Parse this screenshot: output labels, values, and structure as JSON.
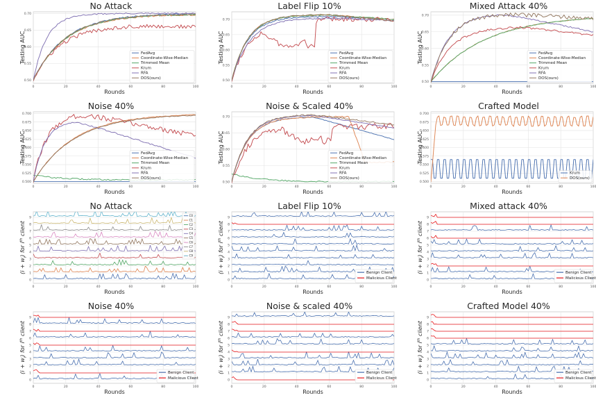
{
  "colors": {
    "FedAvg": "#4c72b0",
    "Coordinate-Wise-Median": "#dd8452",
    "Trimmed Mean": "#55a868",
    "Krum": "#c44e52",
    "RFA": "#8172b3",
    "DOS(ours)": "#937860",
    "Benign Client": "#4c72b0",
    "Malicious Client": "#e8191c",
    "clients": [
      "#4c72b0",
      "#dd8452",
      "#55a868",
      "#c44e52",
      "#8172b3",
      "#937860",
      "#da8bc3",
      "#8c8c8c",
      "#ccb974",
      "#64b5cd"
    ]
  },
  "chart_data": [
    {
      "type": "line",
      "title": "No Attack",
      "xlabel": "Rounds",
      "ylabel": "Testing AUC",
      "xlim": [
        0,
        100
      ],
      "ylim": [
        0.49,
        0.705
      ],
      "x_ticks": [
        "0",
        "20",
        "40",
        "60",
        "80",
        "100"
      ],
      "y_ticks": [
        "0.50",
        "0.55",
        "0.60",
        "0.65",
        "0.70"
      ],
      "y_tick_values": [
        0.5,
        0.55,
        0.6,
        0.65,
        0.7
      ],
      "legend": "lower-right",
      "series": [
        {
          "name": "FedAvg",
          "shape": "rise",
          "start": 0.5,
          "plateau": 0.7,
          "rate": 0.05,
          "noise": 0.002
        },
        {
          "name": "Coordinate-Wise-Median",
          "shape": "rise",
          "start": 0.5,
          "plateau": 0.697,
          "rate": 0.05,
          "noise": 0.002
        },
        {
          "name": "Trimmed Mean",
          "shape": "rise",
          "start": 0.5,
          "plateau": 0.698,
          "rate": 0.05,
          "noise": 0.002
        },
        {
          "name": "Krum",
          "shape": "rise",
          "start": 0.5,
          "plateau": 0.665,
          "rate": 0.06,
          "noise": 0.006,
          "end": 0.66
        },
        {
          "name": "RFA",
          "shape": "rise",
          "start": 0.5,
          "plateau": 0.7,
          "rate": 0.12,
          "noise": 0.002
        },
        {
          "name": "DOS(ours)",
          "shape": "rise",
          "start": 0.5,
          "plateau": 0.699,
          "rate": 0.05,
          "noise": 0.002
        }
      ]
    },
    {
      "type": "line",
      "title": "Label Flip 10%",
      "xlabel": "Rounds",
      "ylabel": "Testing AUC",
      "xlim": [
        0,
        100
      ],
      "ylim": [
        0.49,
        0.725
      ],
      "x_ticks": [
        "0",
        "20",
        "40",
        "60",
        "80",
        "100"
      ],
      "y_ticks": [
        "0.50",
        "0.55",
        "0.60",
        "0.65",
        "0.70"
      ],
      "y_tick_values": [
        0.5,
        0.55,
        0.6,
        0.65,
        0.7
      ],
      "legend": "lower-right",
      "series": [
        {
          "name": "FedAvg",
          "shape": "hump",
          "start": 0.5,
          "peak": 0.71,
          "peak_x": 60,
          "end": 0.7,
          "rate": 0.1,
          "noise": 0.002
        },
        {
          "name": "Coordinate-Wise-Median",
          "shape": "hump",
          "start": 0.5,
          "peak": 0.715,
          "peak_x": 60,
          "end": 0.7,
          "rate": 0.1,
          "noise": 0.002
        },
        {
          "name": "Trimmed Mean",
          "shape": "hump",
          "start": 0.5,
          "peak": 0.715,
          "peak_x": 60,
          "end": 0.7,
          "rate": 0.1,
          "noise": 0.002
        },
        {
          "name": "Krum",
          "shape": "dip",
          "start": 0.5,
          "peak": 0.685,
          "dip_from": 18,
          "dip_to": 52,
          "dip_value": 0.61,
          "end": 0.705,
          "rate": 0.1,
          "noise": 0.008
        },
        {
          "name": "RFA",
          "shape": "hump",
          "start": 0.5,
          "peak": 0.705,
          "peak_x": 65,
          "end": 0.695,
          "rate": 0.09,
          "noise": 0.002
        },
        {
          "name": "DOS(ours)",
          "shape": "hump",
          "start": 0.5,
          "peak": 0.716,
          "peak_x": 60,
          "end": 0.695,
          "rate": 0.1,
          "noise": 0.002
        }
      ]
    },
    {
      "type": "line",
      "title": "Mixed Attack 40%",
      "xlabel": "Rounds",
      "ylabel": "Testing AUC",
      "xlim": [
        0,
        100
      ],
      "ylim": [
        0.495,
        0.71
      ],
      "x_ticks": [
        "0",
        "20",
        "40",
        "60",
        "80",
        "100"
      ],
      "y_ticks": [
        "0.50",
        "0.55",
        "0.60",
        "0.65",
        "0.70"
      ],
      "y_tick_values": [
        0.5,
        0.55,
        0.6,
        0.65,
        0.7
      ],
      "legend": "lower-right",
      "series": [
        {
          "name": "FedAvg",
          "shape": "flat",
          "value": 0.5,
          "noise": 0.0
        },
        {
          "name": "Coordinate-Wise-Median",
          "shape": "rise",
          "start": 0.5,
          "plateau": 0.7,
          "rate": 0.03,
          "noise": 0.001
        },
        {
          "name": "Trimmed Mean",
          "shape": "rise",
          "start": 0.5,
          "plateau": 0.7,
          "rate": 0.03,
          "noise": 0.001
        },
        {
          "name": "Krum",
          "shape": "hump",
          "start": 0.5,
          "peak": 0.665,
          "peak_x": 55,
          "end": 0.64,
          "rate": 0.08,
          "noise": 0.003
        },
        {
          "name": "RFA",
          "shape": "hump",
          "start": 0.5,
          "peak": 0.705,
          "peak_x": 45,
          "end": 0.65,
          "rate": 0.09,
          "noise": 0.002
        },
        {
          "name": "DOS(ours)",
          "shape": "hump",
          "start": 0.5,
          "peak": 0.705,
          "peak_x": 45,
          "end": 0.69,
          "rate": 0.09,
          "noise": 0.006
        }
      ]
    },
    {
      "type": "line",
      "title": "Noise 40%",
      "xlabel": "Rounds",
      "ylabel": "Testing AUC",
      "xlim": [
        0,
        100
      ],
      "ylim": [
        0.495,
        0.705
      ],
      "x_ticks": [
        "0",
        "20",
        "40",
        "60",
        "80",
        "100"
      ],
      "y_ticks": [
        "0.500",
        "0.525",
        "0.550",
        "0.575",
        "0.600",
        "0.625",
        "0.650",
        "0.675",
        "0.700"
      ],
      "y_tick_values": [
        0.5,
        0.525,
        0.55,
        0.575,
        0.6,
        0.625,
        0.65,
        0.675,
        0.7
      ],
      "legend": "lower-right",
      "series": [
        {
          "name": "FedAvg",
          "shape": "flat",
          "value": 0.5,
          "noise": 0.0
        },
        {
          "name": "Coordinate-Wise-Median",
          "shape": "rise",
          "start": 0.5,
          "plateau": 0.7,
          "rate": 0.04,
          "noise": 0.001
        },
        {
          "name": "Trimmed Mean",
          "shape": "decay",
          "start": 0.52,
          "end": 0.505,
          "noise": 0.002
        },
        {
          "name": "Krum",
          "shape": "hump",
          "start": 0.5,
          "peak": 0.7,
          "peak_x": 30,
          "end": 0.635,
          "rate": 0.12,
          "noise": 0.008
        },
        {
          "name": "RFA",
          "shape": "hump",
          "start": 0.5,
          "peak": 0.68,
          "peak_x": 25,
          "end": 0.57,
          "rate": 0.14,
          "noise": 0.002
        },
        {
          "name": "DOS(ours)",
          "shape": "rise",
          "start": 0.5,
          "plateau": 0.698,
          "rate": 0.04,
          "noise": 0.001
        }
      ]
    },
    {
      "type": "line",
      "title": "Noise & Scaled 40%",
      "xlabel": "Rounds",
      "ylabel": "Testing AUC",
      "xlim": [
        0,
        100
      ],
      "ylim": [
        0.495,
        0.715
      ],
      "x_ticks": [
        "0",
        "20",
        "40",
        "60",
        "80",
        "100"
      ],
      "y_ticks": [
        "0.50",
        "0.55",
        "0.60",
        "0.65",
        "0.70"
      ],
      "y_tick_values": [
        0.5,
        0.55,
        0.6,
        0.65,
        0.7
      ],
      "legend": "lower-right",
      "series": [
        {
          "name": "FedAvg",
          "shape": "hump",
          "start": 0.5,
          "peak": 0.7,
          "peak_x": 50,
          "end": 0.63,
          "rate": 0.1,
          "noise": 0.001
        },
        {
          "name": "Coordinate-Wise-Median",
          "shape": "crash",
          "start": 0.5,
          "peak": 0.7,
          "crash_x": 72,
          "crash_to": 0.56,
          "rate": 0.1,
          "noise": 0.002
        },
        {
          "name": "Trimmed Mean",
          "shape": "decay",
          "start": 0.525,
          "end": 0.5,
          "noise": 0.002
        },
        {
          "name": "Krum",
          "shape": "dip",
          "start": 0.5,
          "peak": 0.67,
          "dip_from": 30,
          "dip_to": 62,
          "dip_value": 0.625,
          "end": 0.67,
          "rate": 0.1,
          "noise": 0.01
        },
        {
          "name": "RFA",
          "shape": "hump",
          "start": 0.5,
          "peak": 0.705,
          "peak_x": 50,
          "end": 0.665,
          "rate": 0.1,
          "noise": 0.001
        },
        {
          "name": "DOS(ours)",
          "shape": "hump",
          "start": 0.5,
          "peak": 0.707,
          "peak_x": 50,
          "end": 0.675,
          "rate": 0.1,
          "noise": 0.002
        }
      ]
    },
    {
      "type": "line",
      "title": "Crafted Model",
      "xlabel": "Rounds",
      "ylabel": "Testing AUC",
      "xlim": [
        0,
        100
      ],
      "ylim": [
        0.495,
        0.705
      ],
      "x_ticks": [
        "0",
        "20",
        "40",
        "60",
        "80",
        "100"
      ],
      "y_ticks": [
        "0.500",
        "0.525",
        "0.550",
        "0.575",
        "0.600",
        "0.625",
        "0.650",
        "0.675",
        "0.700"
      ],
      "y_tick_values": [
        0.5,
        0.525,
        0.55,
        0.575,
        0.6,
        0.625,
        0.65,
        0.675,
        0.7
      ],
      "legend": "lower-right",
      "series": [
        {
          "name": "Krum",
          "color_key": "FedAvg",
          "shape": "zigzag",
          "low": 0.51,
          "high": 0.565,
          "noise": 0.0
        },
        {
          "name": "DOS(ours)",
          "color_key": "Coordinate-Wise-Median",
          "shape": "zigzag_rise",
          "start": 0.5,
          "low": 0.665,
          "high": 0.69,
          "noise": 0.003
        }
      ]
    },
    {
      "type": "line",
      "title": "No Attack",
      "xlabel": "Rounds",
      "ylabel": "(i + w_i) for i^th client",
      "xlim": [
        0,
        100
      ],
      "ylim": [
        -0.5,
        9.8
      ],
      "x_ticks": [
        "0",
        "20",
        "40",
        "60",
        "80",
        "100"
      ],
      "y_ticks": [
        "0",
        "1",
        "2",
        "3",
        "4",
        "5",
        "6",
        "7",
        "8",
        "9"
      ],
      "y_tick_values": [
        0,
        1,
        2,
        3,
        4,
        5,
        6,
        7,
        8,
        9
      ],
      "legend": "top-right",
      "mode": "clients",
      "client_labels": [
        "C0",
        "C1",
        "C2",
        "C3",
        "C4",
        "C5",
        "C6",
        "C7",
        "C8",
        "C9"
      ],
      "malicious": []
    },
    {
      "type": "line",
      "title": "Label Flip 10%",
      "xlabel": "Rounds",
      "ylabel": "(i + w_i) for i^th client",
      "xlim": [
        0,
        100
      ],
      "ylim": [
        -0.5,
        9.8
      ],
      "x_ticks": [
        "0",
        "20",
        "40",
        "60",
        "80",
        "100"
      ],
      "y_ticks": [
        "0",
        "1",
        "2",
        "3",
        "4",
        "5",
        "6",
        "7",
        "8",
        "9"
      ],
      "y_tick_values": [
        0,
        1,
        2,
        3,
        4,
        5,
        6,
        7,
        8,
        9
      ],
      "legend": "lower-right",
      "mode": "benign_malicious",
      "series_names": [
        "Benign Client",
        "Malicious Client"
      ],
      "malicious": [
        8
      ]
    },
    {
      "type": "line",
      "title": "Mixed attack 40%",
      "xlabel": "Rounds",
      "ylabel": "(i + w_i) for i^th client",
      "xlim": [
        0,
        100
      ],
      "ylim": [
        -0.5,
        9.8
      ],
      "x_ticks": [
        "0",
        "20",
        "40",
        "60",
        "80",
        "100"
      ],
      "y_ticks": [
        "0",
        "1",
        "2",
        "3",
        "4",
        "5",
        "6",
        "7",
        "8",
        "9"
      ],
      "y_tick_values": [
        0,
        1,
        2,
        3,
        4,
        5,
        6,
        7,
        8,
        9
      ],
      "legend": "lower-right",
      "mode": "benign_malicious",
      "series_names": [
        "Benign Client",
        "Malicious Client"
      ],
      "malicious": [
        2,
        6,
        8,
        9
      ]
    },
    {
      "type": "line",
      "title": "Noise 40%",
      "xlabel": "Rounds",
      "ylabel": "(i + w_i) for i^th client",
      "xlim": [
        0,
        100
      ],
      "ylim": [
        -0.5,
        9.8
      ],
      "x_ticks": [
        "0",
        "20",
        "40",
        "60",
        "80",
        "100"
      ],
      "y_ticks": [
        "0",
        "1",
        "2",
        "3",
        "4",
        "5",
        "6",
        "7",
        "8",
        "9"
      ],
      "y_tick_values": [
        0,
        1,
        2,
        3,
        4,
        5,
        6,
        7,
        8,
        9
      ],
      "legend": "lower-right",
      "mode": "benign_malicious",
      "series_names": [
        "Benign Client",
        "Malicious Client"
      ],
      "malicious": [
        1,
        5,
        7,
        9
      ]
    },
    {
      "type": "line",
      "title": "Noise & scaled 40%",
      "xlabel": "Rounds",
      "ylabel": "(i + w_i) for i^th client",
      "xlim": [
        0,
        100
      ],
      "ylim": [
        -0.5,
        9.8
      ],
      "x_ticks": [
        "0",
        "20",
        "40",
        "60",
        "80",
        "100"
      ],
      "y_ticks": [
        "0",
        "1",
        "2",
        "3",
        "4",
        "5",
        "6",
        "7",
        "8",
        "9"
      ],
      "y_tick_values": [
        0,
        1,
        2,
        3,
        4,
        5,
        6,
        7,
        8,
        9
      ],
      "legend": "lower-right",
      "mode": "benign_malicious",
      "series_names": [
        "Benign Client",
        "Malicious Client"
      ],
      "malicious": [
        0,
        4,
        7,
        8
      ]
    },
    {
      "type": "line",
      "title": "Crafted Model 40%",
      "xlabel": "Rounds",
      "ylabel": "(i + w_i) for i^th client",
      "xlim": [
        0,
        100
      ],
      "ylim": [
        -0.5,
        9.8
      ],
      "x_ticks": [
        "0",
        "20",
        "40",
        "60",
        "80",
        "100"
      ],
      "y_ticks": [
        "0",
        "1",
        "2",
        "3",
        "4",
        "5",
        "6",
        "7",
        "8",
        "9"
      ],
      "y_tick_values": [
        0,
        1,
        2,
        3,
        4,
        5,
        6,
        7,
        8,
        9
      ],
      "legend": "lower-right",
      "mode": "benign_malicious",
      "series_names": [
        "Benign Client",
        "Malicious Client"
      ],
      "malicious": [
        6,
        7,
        8,
        9
      ]
    }
  ]
}
